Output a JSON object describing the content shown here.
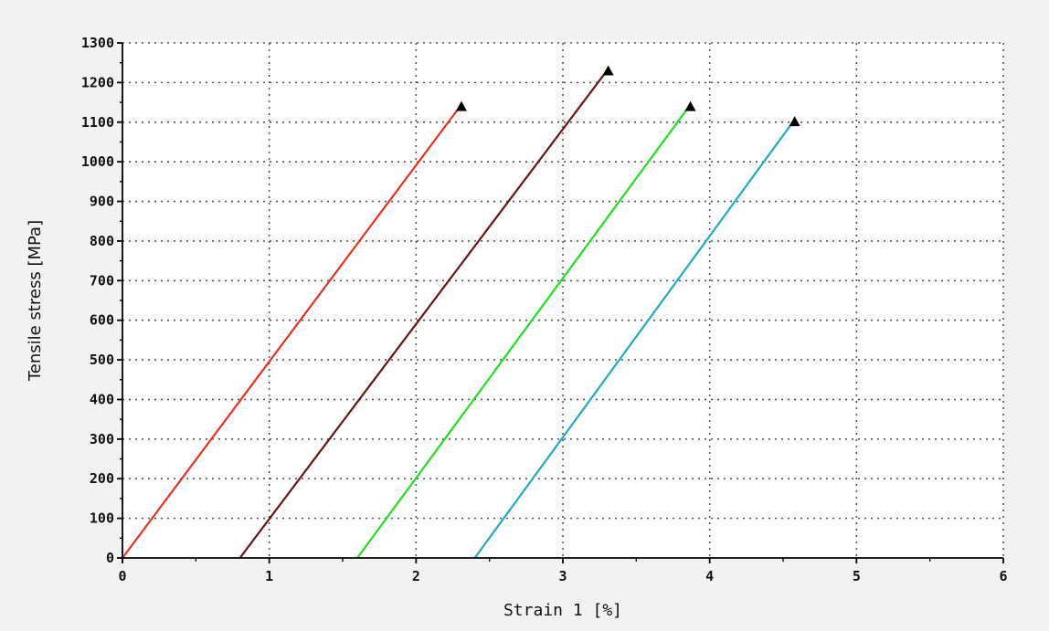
{
  "colors": {
    "background": "#f2f2f2",
    "plot_background": "#ffffff",
    "grid": "#555555",
    "axis": "#000000",
    "marker": "#000000"
  },
  "chart_data": {
    "type": "line",
    "title": "",
    "xlabel": "Strain 1 [%]",
    "ylabel": "Tensile stress [MPa]",
    "xlim": [
      0,
      6
    ],
    "ylim": [
      0,
      1300
    ],
    "xticks": [
      0,
      1,
      2,
      3,
      4,
      5,
      6
    ],
    "yticks": [
      0,
      100,
      200,
      300,
      400,
      500,
      600,
      700,
      800,
      900,
      1000,
      1100,
      1200,
      1300
    ],
    "grid": true,
    "grid_style": "dotted",
    "legend": false,
    "marker": "triangle at end point",
    "series": [
      {
        "color": "#e8321e",
        "x": [
          0,
          2.29
        ],
        "y": [
          0,
          1135
        ]
      },
      {
        "color": "#6b1212",
        "x": [
          0.8,
          3.29
        ],
        "y": [
          0,
          1225
        ]
      },
      {
        "color": "#22dd22",
        "x": [
          1.6,
          3.85
        ],
        "y": [
          0,
          1135
        ]
      },
      {
        "color": "#22aabb",
        "x": [
          2.4,
          4.56
        ],
        "y": [
          0,
          1097
        ]
      }
    ]
  }
}
